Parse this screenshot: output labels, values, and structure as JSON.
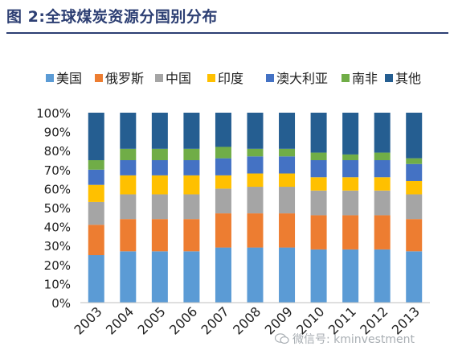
{
  "header": {
    "title": "图 2:全球煤炭资源分国别分布"
  },
  "watermark": {
    "text": "微信号: kminvestment"
  },
  "chart_data": {
    "type": "bar",
    "stacked": true,
    "percent": true,
    "categories": [
      "2003",
      "2004",
      "2005",
      "2006",
      "2007",
      "2008",
      "2009",
      "2010",
      "2011",
      "2012",
      "2013"
    ],
    "yticks": [
      "0%",
      "10%",
      "20%",
      "30%",
      "40%",
      "50%",
      "60%",
      "70%",
      "80%",
      "90%",
      "100%"
    ],
    "ylim": [
      0,
      100
    ],
    "grid": false,
    "legend_position": "top",
    "series": [
      {
        "name": "美国",
        "color": "#5b9bd5",
        "values": [
          25,
          27,
          27,
          27,
          29,
          29,
          29,
          28,
          28,
          28,
          27
        ]
      },
      {
        "name": "俄罗斯",
        "color": "#ed7d31",
        "values": [
          16,
          17,
          17,
          17,
          18,
          18,
          18,
          18,
          18,
          18,
          17
        ]
      },
      {
        "name": "中国",
        "color": "#a5a5a5",
        "values": [
          12,
          13,
          13,
          13,
          13,
          14,
          14,
          13,
          13,
          13,
          13
        ]
      },
      {
        "name": "印度",
        "color": "#ffc000",
        "values": [
          9,
          10,
          10,
          10,
          7,
          7,
          7,
          7,
          7,
          7,
          7
        ]
      },
      {
        "name": "澳大利亚",
        "color": "#4472c4",
        "values": [
          8,
          8,
          8,
          8,
          9,
          9,
          9,
          9,
          9,
          9,
          9
        ]
      },
      {
        "name": "南非",
        "color": "#70ad47",
        "values": [
          5,
          6,
          6,
          6,
          6,
          4,
          4,
          4,
          3,
          4,
          3
        ]
      },
      {
        "name": "其他",
        "color": "#255e91",
        "values": [
          25,
          19,
          19,
          19,
          18,
          19,
          19,
          21,
          22,
          21,
          24
        ]
      }
    ]
  }
}
